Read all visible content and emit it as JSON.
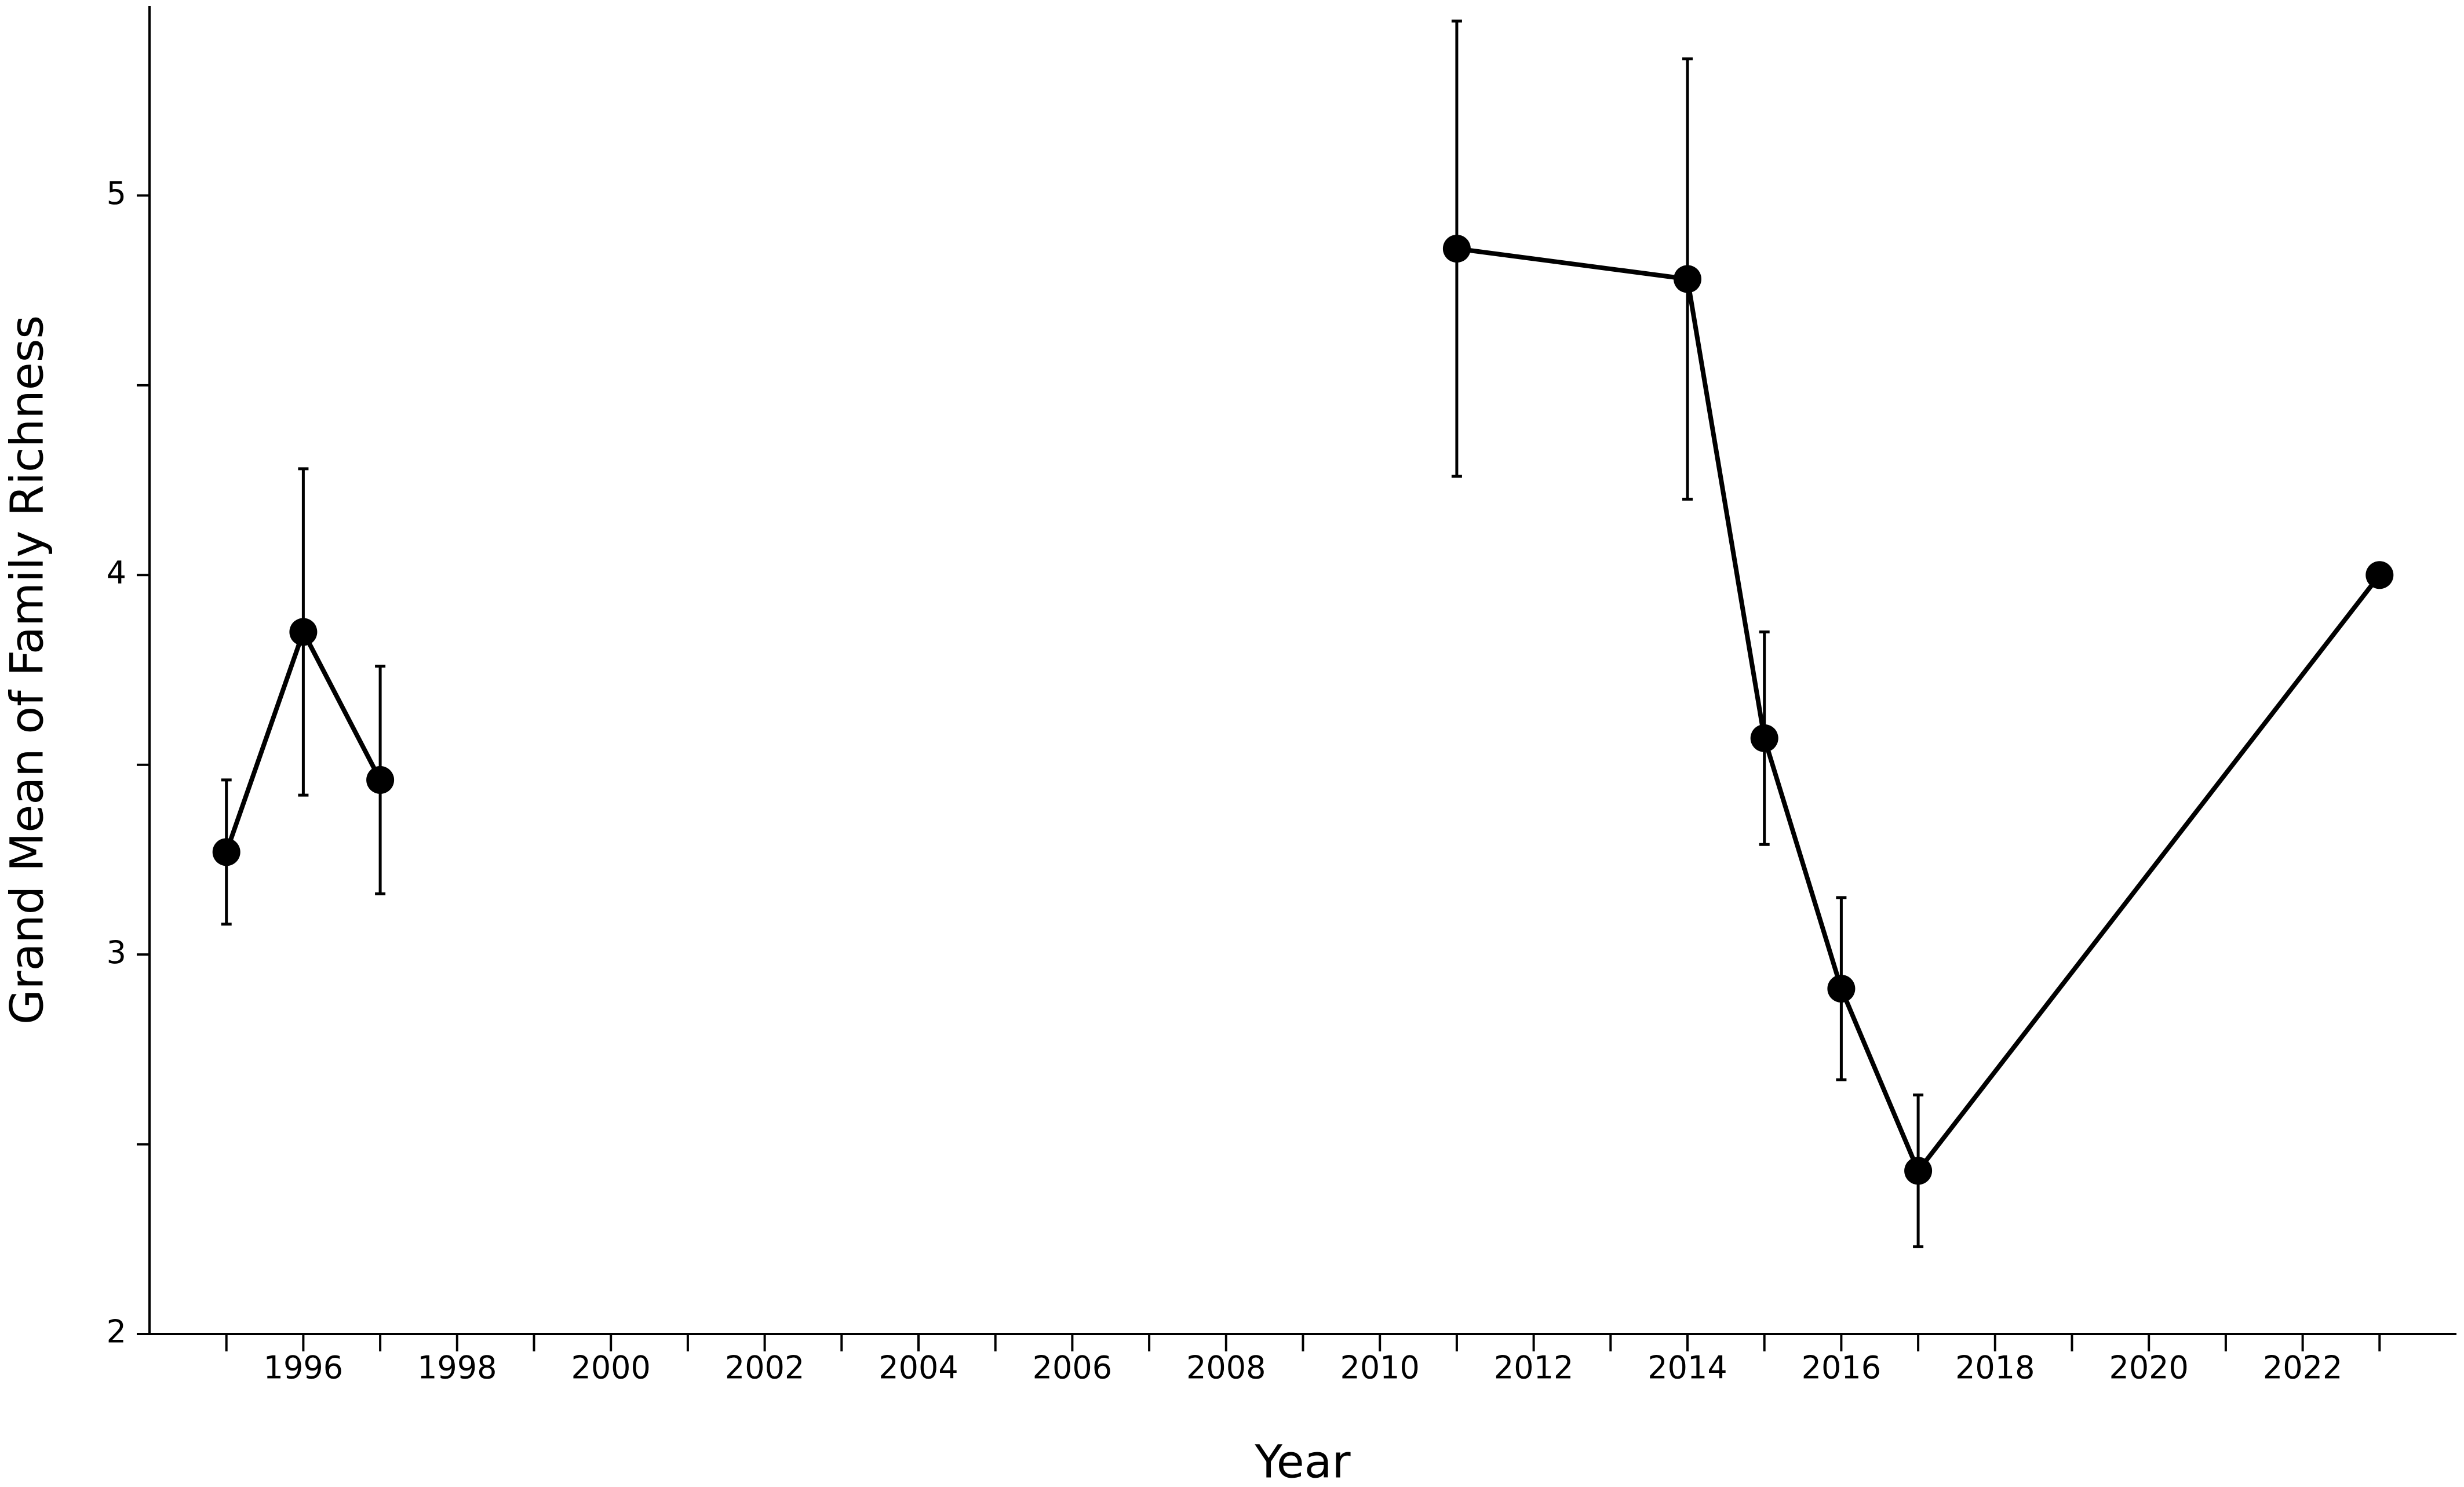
{
  "chart_data": {
    "type": "line",
    "xlabel": "Year",
    "ylabel": "Grand Mean of Family Richness",
    "x": [
      1995,
      1996,
      1997,
      null,
      2011,
      2014,
      2015,
      2016,
      2017,
      2023
    ],
    "values": [
      3.27,
      3.85,
      3.46,
      null,
      4.86,
      4.78,
      3.57,
      2.91,
      2.43,
      4.0
    ],
    "errors": [
      0.19,
      0.43,
      0.3,
      null,
      0.6,
      0.58,
      0.28,
      0.24,
      0.2,
      null
    ],
    "color": "#000000",
    "xlim": [
      1994,
      2024
    ],
    "xticks": [
      1996,
      1998,
      2000,
      2002,
      2004,
      2006,
      2008,
      2010,
      2012,
      2014,
      2016,
      2018,
      2020,
      2022
    ],
    "xminor_ticks": [
      1995,
      1997,
      1999,
      2001,
      2003,
      2005,
      2007,
      2009,
      2011,
      2013,
      2015,
      2017,
      2019,
      2021,
      2023
    ],
    "ylim": [
      2,
      5.5
    ],
    "yticks": [
      2,
      3,
      4,
      5
    ],
    "yminor_ticks": [
      2.5,
      3.5,
      4.5
    ],
    "grid": false
  }
}
